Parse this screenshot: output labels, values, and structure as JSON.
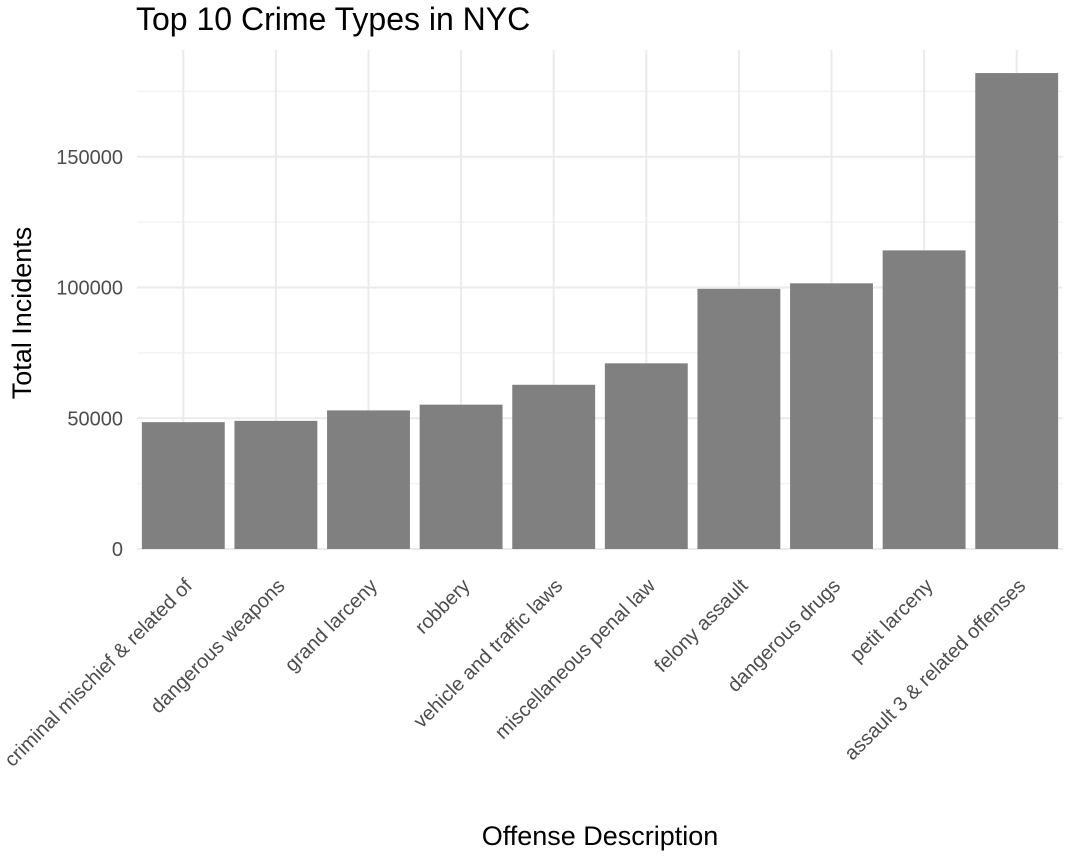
{
  "chart_data": {
    "type": "bar",
    "title": "Top 10 Crime Types in NYC",
    "xlabel": "Offense Description",
    "ylabel": "Total Incidents",
    "categories": [
      "criminal mischief & related of",
      "dangerous weapons",
      "grand larceny",
      "robbery",
      "vehicle and traffic laws",
      "miscellaneous penal law",
      "felony assault",
      "dangerous drugs",
      "petit larceny",
      "assault 3 & related offenses"
    ],
    "values": [
      48500,
      49000,
      53000,
      55200,
      62800,
      71000,
      99500,
      101600,
      114200,
      182000
    ],
    "yticks": [
      "0",
      "50000",
      "100000",
      "150000"
    ],
    "ylim": [
      0,
      190000
    ],
    "grid": true,
    "bar_color": "#808080",
    "grid_color": "#ebebeb"
  }
}
